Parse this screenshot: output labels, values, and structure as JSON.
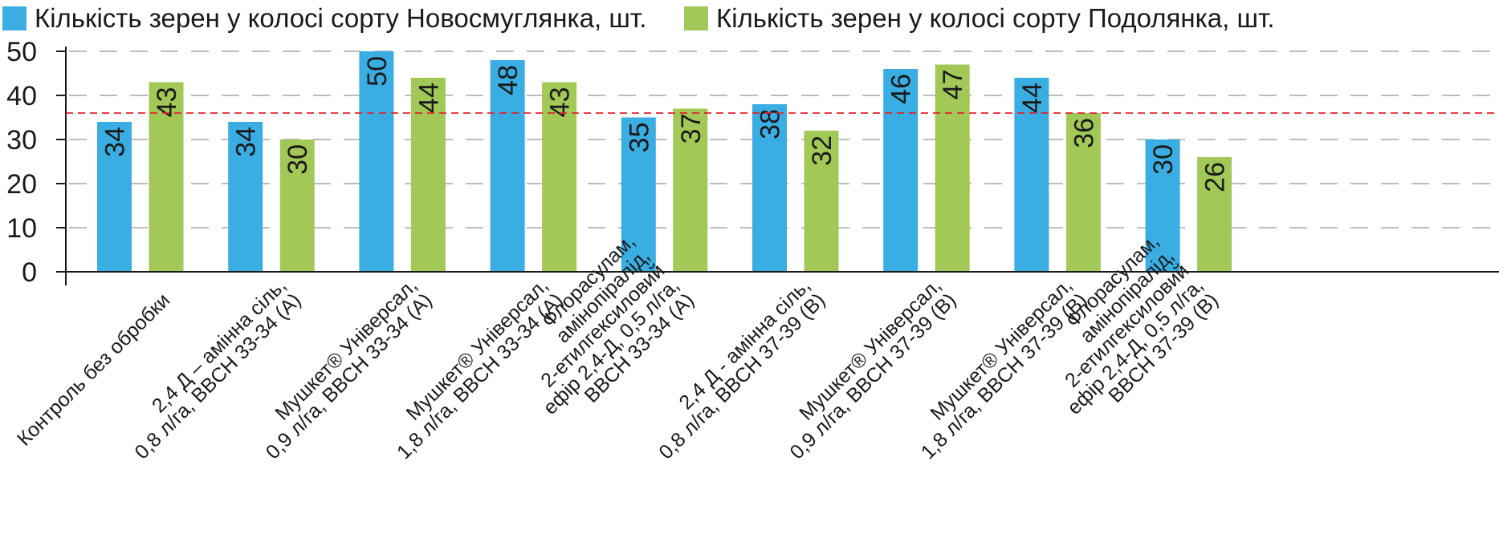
{
  "chart_data": {
    "type": "bar",
    "categories": [
      [
        "Контроль без обробки"
      ],
      [
        "2,4 Д – амінна сіль,",
        "0,8 л/га, BBCH 33-34 (A)"
      ],
      [
        "Мушкет® Універсал,",
        "0,9 л/га, BBCH 33-34 (A)"
      ],
      [
        "Мушкет® Універсал,",
        "1,8 л/га, BBCH 33-34 (A)"
      ],
      [
        "Флорасулам,",
        "амінопіралід,",
        "2-етилгексиловий",
        "ефір 2,4-Д, 0,5 л/га,",
        "BBCH 33-34 (A)"
      ],
      [
        "2,4 Д - амінна сіль,",
        "0,8 л/га, BBCH 37-39 (B)"
      ],
      [
        "Мушкет® Універсал,",
        "0,9 л/га, BBCH 37-39 (B)"
      ],
      [
        "Мушкет® Універсал,",
        "1,8 л/га, BBCH 37-39 (B)"
      ],
      [
        "Флорасулам,",
        "амінопіралід,",
        "2-етилгексиловий",
        "ефір 2,4-Д,  0,5 л/га,",
        "BBCH 37-39 (B)"
      ]
    ],
    "series": [
      {
        "name": "Кількість зерен у колосі сорту Новосмуглянка, шт.",
        "color": "#3aaee3",
        "values": [
          34,
          34,
          50,
          48,
          35,
          38,
          46,
          44,
          30
        ]
      },
      {
        "name": "Кількість зерен у колосі сорту Подолянка, шт.",
        "color": "#a2c857",
        "values": [
          43,
          30,
          44,
          43,
          37,
          32,
          47,
          36,
          26
        ]
      }
    ],
    "ylim": [
      0,
      50
    ],
    "yticks": [
      "0",
      "10",
      "20",
      "30",
      "40",
      "50"
    ],
    "reference_line": {
      "value": 36,
      "color": "#e0242a",
      "style": "dashed"
    },
    "grid": true,
    "legend": "top",
    "value_labels": "inside-top-rotated"
  }
}
